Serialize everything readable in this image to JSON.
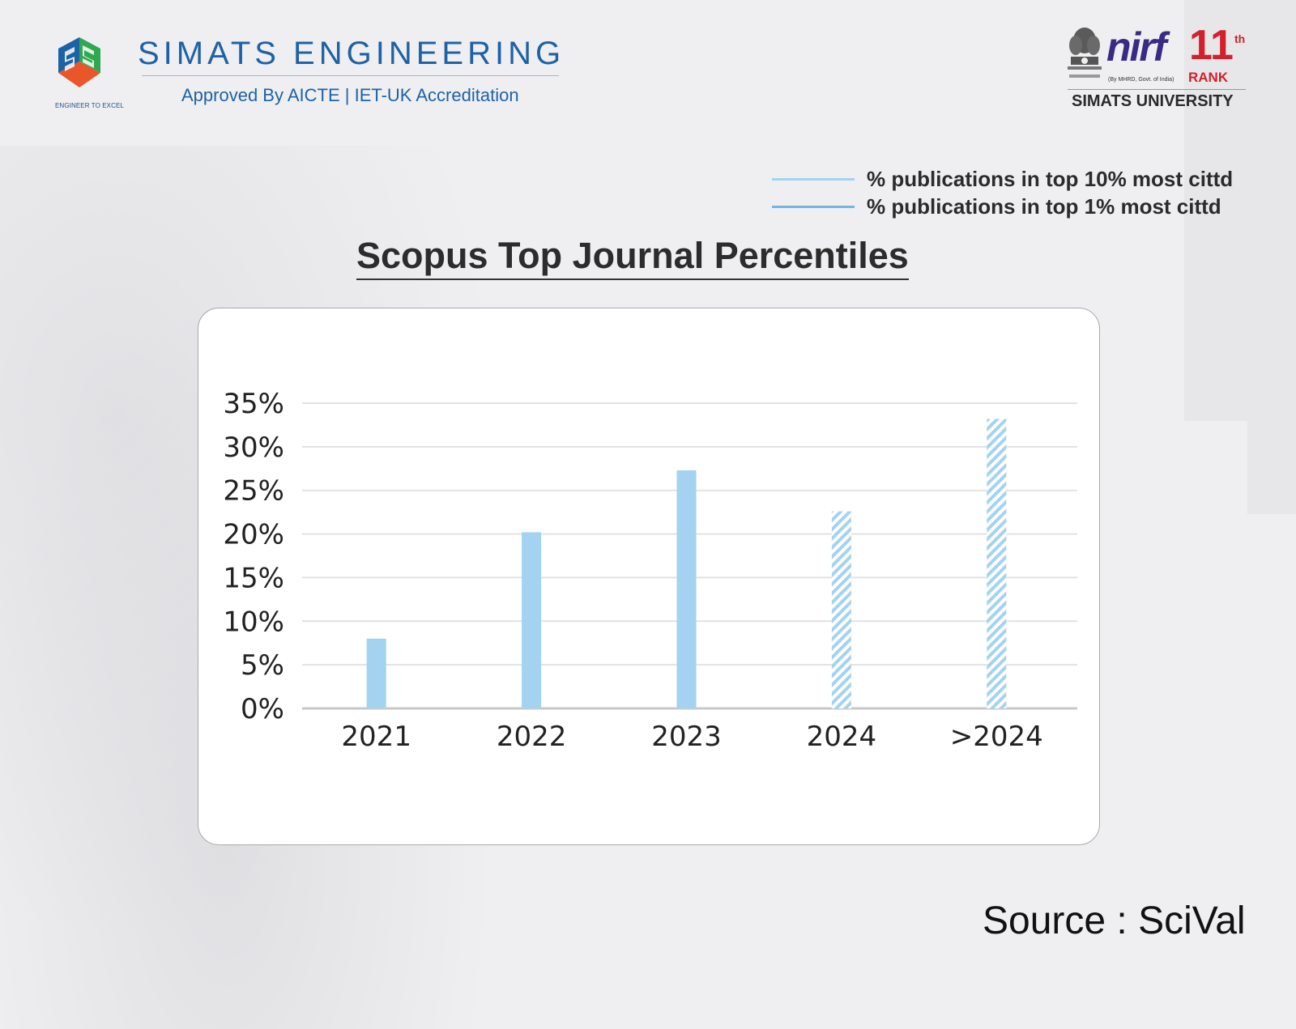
{
  "header": {
    "brand_name": "SIMATS ENGINEERING",
    "brand_subtitle": "Approved By AICTE | IET-UK Accreditation",
    "brand_tagline": "ENGINEER TO EXCEL",
    "nirf_word": "nirf",
    "nirf_rank": "11",
    "nirf_rank_suffix": "th",
    "nirf_rank_label": "RANK",
    "nirf_note": "(By MHRD, Govt. of India)",
    "university": "SIMATS UNIVERSITY"
  },
  "legend": [
    {
      "label": "% publications in top 10% most cittd",
      "color": "#a3d3f0"
    },
    {
      "label": "% publications in top 1% most cittd",
      "color": "#6cb8e6"
    }
  ],
  "colors": {
    "bar_fill": "#a3d3f0",
    "brand_blue": "#1e62a6",
    "nirf_red": "#d4202b"
  },
  "source": "Source : SciVal",
  "chart_data": {
    "type": "bar",
    "title": "Scopus Top Journal Percentiles",
    "xlabel": "",
    "ylabel": "",
    "categories": [
      "2021",
      "2022",
      "2023",
      "2024",
      ">2024"
    ],
    "values": [
      8,
      20.2,
      27.3,
      22.6,
      33.2
    ],
    "patterns": [
      "solid",
      "solid",
      "solid",
      "hatched",
      "hatched"
    ],
    "ylim": [
      0,
      35
    ],
    "yticks": [
      0,
      5,
      10,
      15,
      20,
      25,
      30,
      35
    ],
    "ytick_labels": [
      "0%",
      "5%",
      "10%",
      "15%",
      "20%",
      "25%",
      "30%",
      "35%"
    ],
    "grid": true
  }
}
